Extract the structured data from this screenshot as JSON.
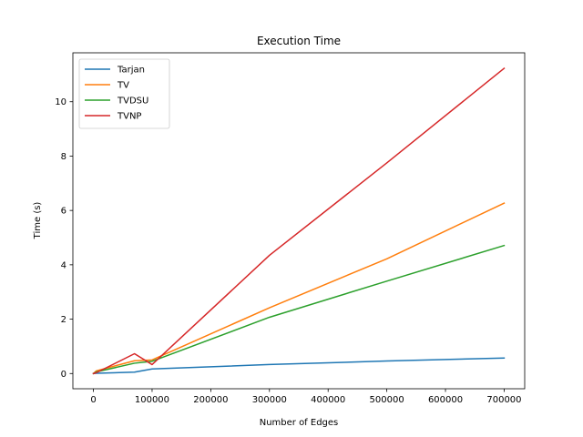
{
  "chart_data": {
    "type": "line",
    "title": "Execution Time",
    "xlabel": "Number of Edges",
    "ylabel": "Time (s)",
    "xlim": [
      -35000,
      735000
    ],
    "ylim": [
      -0.56,
      11.8
    ],
    "xticks": [
      0,
      100000,
      200000,
      300000,
      400000,
      500000,
      600000,
      700000
    ],
    "yticks": [
      0,
      2,
      4,
      6,
      8,
      10
    ],
    "grid": false,
    "legend_position": "top-left",
    "series": [
      {
        "name": "Tarjan",
        "color": "#1f77b4",
        "x": [
          0,
          5000,
          70000,
          100000,
          300000,
          500000,
          700000
        ],
        "y": [
          0.0,
          0.01,
          0.05,
          0.17,
          0.33,
          0.46,
          0.57
        ]
      },
      {
        "name": "TV",
        "color": "#ff7f0e",
        "x": [
          0,
          5000,
          70000,
          100000,
          300000,
          500000,
          700000
        ],
        "y": [
          0.0,
          0.1,
          0.47,
          0.5,
          2.42,
          4.22,
          6.27
        ]
      },
      {
        "name": "TVDSU",
        "color": "#2ca02c",
        "x": [
          0,
          5000,
          70000,
          100000,
          300000,
          500000,
          700000
        ],
        "y": [
          0.0,
          0.06,
          0.38,
          0.45,
          2.07,
          3.4,
          4.71
        ]
      },
      {
        "name": "TVNP",
        "color": "#d62728",
        "x": [
          0,
          5000,
          70000,
          100000,
          300000,
          500000,
          700000
        ],
        "y": [
          0.0,
          0.03,
          0.73,
          0.33,
          4.35,
          7.75,
          11.23
        ]
      }
    ]
  }
}
